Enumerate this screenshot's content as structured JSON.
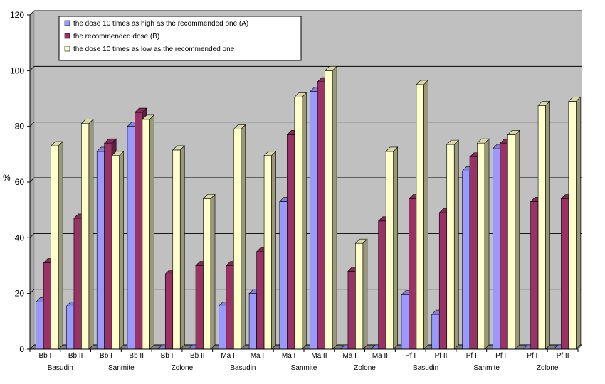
{
  "chart_data": {
    "type": "bar",
    "ylabel": "%",
    "ylim": [
      0,
      120
    ],
    "yticks": [
      0,
      20,
      40,
      60,
      80,
      100,
      120
    ],
    "grid": true,
    "legend_position": "top-left",
    "categories": [
      "Bb I",
      "Bb II",
      "Bb I",
      "Bb II",
      "Bb I",
      "Bb II",
      "Ma I",
      "Ma II",
      "Ma I",
      "Ma II",
      "Ma I",
      "Ma II",
      "Pf I",
      "Pf II",
      "Pf I",
      "Pf II",
      "Pf I",
      "Pf II"
    ],
    "groups": [
      "Basudin",
      "Sanmite",
      "Zolone",
      "Basudin",
      "Sanmite",
      "Zolone",
      "Basudin",
      "Sanmite",
      "Zolone"
    ],
    "series": [
      {
        "name": "the dose 10 times as high as the recommended one (A)",
        "color": "#9999ff",
        "values": [
          17,
          15.5,
          71,
          80,
          0,
          0,
          15.5,
          20,
          53,
          92.5,
          0,
          0,
          19.5,
          12.5,
          64,
          72,
          0,
          0
        ]
      },
      {
        "name": "the recommended dose (B)",
        "color": "#993366",
        "values": [
          31,
          47,
          74,
          85,
          27,
          30,
          30,
          35,
          77,
          96,
          28,
          46,
          54,
          49,
          69,
          74,
          53,
          54
        ]
      },
      {
        "name": "the dose 10 times as low as the recommended one",
        "color": "#ffffcc",
        "values": [
          73,
          81,
          69.5,
          82.5,
          71.5,
          54,
          79,
          69.5,
          90.5,
          100,
          38,
          71,
          95,
          73.5,
          74,
          77,
          87.5,
          89
        ]
      }
    ]
  }
}
